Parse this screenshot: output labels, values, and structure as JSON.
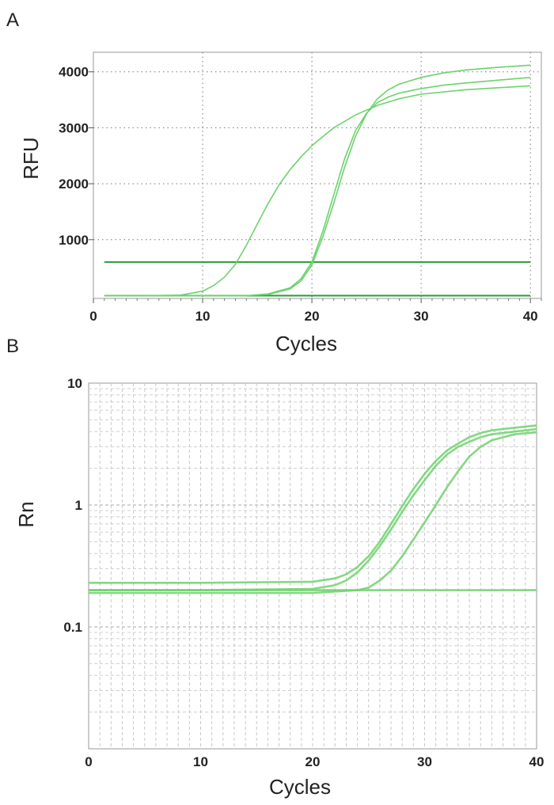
{
  "chart_data": [
    {
      "panel": "A",
      "type": "line",
      "xlabel": "Cycles",
      "ylabel": "RFU",
      "xlim": [
        0,
        41
      ],
      "ylim": [
        -50,
        4350
      ],
      "x_ticks": [
        0,
        10,
        20,
        30,
        40
      ],
      "y_ticks": [
        1000,
        2000,
        3000,
        4000
      ],
      "y_scale": "linear",
      "grid": "dotted",
      "line_color": "#6dd26d",
      "threshold_color": "#2a9a3a",
      "series": [
        {
          "x": [
            1,
            5,
            8,
            10,
            11,
            12,
            13,
            14,
            15,
            16,
            17,
            18,
            19,
            20,
            22,
            24,
            26,
            28,
            30,
            34,
            40
          ],
          "y": [
            0,
            0,
            10,
            80,
            180,
            330,
            560,
            900,
            1280,
            1650,
            1980,
            2250,
            2480,
            2680,
            3000,
            3230,
            3400,
            3520,
            3600,
            3680,
            3750
          ]
        },
        {
          "x": [
            1,
            14,
            16,
            18,
            19,
            20,
            21,
            22,
            23,
            24,
            25,
            26,
            27,
            28,
            30,
            32,
            34,
            37,
            40
          ],
          "y": [
            0,
            0,
            30,
            140,
            300,
            600,
            1150,
            1800,
            2450,
            2950,
            3260,
            3450,
            3550,
            3620,
            3700,
            3760,
            3800,
            3850,
            3900
          ]
        },
        {
          "x": [
            1,
            14,
            16,
            18,
            19,
            20,
            21,
            22,
            23,
            24,
            25,
            26,
            27,
            28,
            30,
            32,
            34,
            37,
            40
          ],
          "y": [
            0,
            0,
            20,
            120,
            260,
            550,
            1050,
            1650,
            2300,
            2850,
            3250,
            3520,
            3680,
            3780,
            3900,
            3980,
            4030,
            4080,
            4120
          ]
        }
      ],
      "thresholds": [
        {
          "x": [
            1,
            40
          ],
          "y": [
            600,
            600
          ]
        },
        {
          "x": [
            1,
            40
          ],
          "y": [
            0,
            0
          ]
        }
      ]
    },
    {
      "panel": "B",
      "type": "line",
      "xlabel": "Cycles",
      "ylabel": "Rn",
      "xlim": [
        0,
        40
      ],
      "ylim": [
        0.01,
        10
      ],
      "x_ticks": [
        0,
        10,
        20,
        30,
        40
      ],
      "y_ticks": [
        0.1,
        1,
        10
      ],
      "y_tick_labels": [
        "0.1",
        "1",
        "10"
      ],
      "y_scale": "log",
      "grid": "dashed",
      "line_color": "#6dd26d",
      "series": [
        {
          "x": [
            0,
            10,
            20,
            22,
            23,
            24,
            25,
            26,
            27,
            28,
            29,
            30,
            31,
            32,
            33,
            34,
            35,
            36,
            38,
            40
          ],
          "y": [
            0.23,
            0.23,
            0.235,
            0.25,
            0.27,
            0.31,
            0.38,
            0.5,
            0.7,
            0.98,
            1.35,
            1.8,
            2.3,
            2.8,
            3.2,
            3.6,
            3.9,
            4.1,
            4.3,
            4.5
          ]
        },
        {
          "x": [
            0,
            10,
            20,
            22,
            23,
            24,
            25,
            26,
            27,
            28,
            29,
            30,
            31,
            32,
            33,
            34,
            35,
            36,
            38,
            40
          ],
          "y": [
            0.2,
            0.2,
            0.205,
            0.22,
            0.24,
            0.28,
            0.35,
            0.46,
            0.63,
            0.88,
            1.2,
            1.6,
            2.1,
            2.6,
            3.0,
            3.3,
            3.6,
            3.8,
            4.0,
            4.2
          ]
        },
        {
          "x": [
            0,
            10,
            20,
            24,
            25,
            26,
            27,
            28,
            29,
            30,
            31,
            32,
            33,
            34,
            35,
            36,
            38,
            40
          ],
          "y": [
            0.19,
            0.19,
            0.19,
            0.2,
            0.21,
            0.24,
            0.29,
            0.38,
            0.52,
            0.72,
            1.0,
            1.4,
            1.9,
            2.5,
            3.0,
            3.4,
            3.8,
            3.95
          ]
        },
        {
          "x": [
            0,
            10,
            20,
            30,
            40
          ],
          "y": [
            0.2,
            0.2,
            0.2,
            0.2,
            0.2
          ]
        }
      ]
    }
  ]
}
